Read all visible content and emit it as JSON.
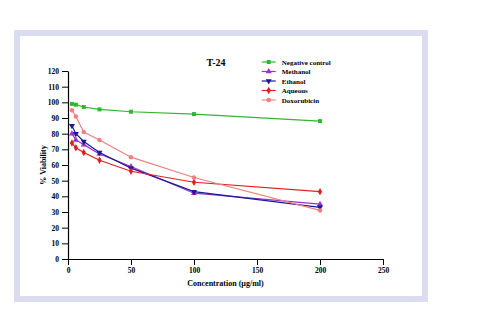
{
  "chart_data": {
    "type": "line",
    "title": "T-24",
    "x_label": "Concentration (µg/ml)",
    "y_label": "% Viability",
    "x": [
      3.125,
      6.25,
      12.5,
      25,
      50,
      100,
      200
    ],
    "xlim": [
      0,
      250
    ],
    "xticks": [
      0,
      50,
      100,
      150,
      200,
      250
    ],
    "ylim": [
      0,
      120
    ],
    "yticks": [
      0,
      10,
      20,
      30,
      40,
      50,
      60,
      70,
      80,
      90,
      100,
      110,
      120
    ],
    "grid": false,
    "legend": "top-right",
    "series": [
      {
        "name": "Negative control",
        "color": "#2db82d",
        "marker": "square",
        "values": [
          99,
          98.5,
          97,
          95.5,
          94,
          92.5,
          88
        ]
      },
      {
        "name": "Methanol",
        "color": "#9933cc",
        "marker": "triangle-up",
        "values": [
          80,
          76,
          73,
          67,
          59,
          42,
          35
        ]
      },
      {
        "name": "Ethanol",
        "color": "#1a1a99",
        "marker": "triangle-down",
        "values": [
          85,
          80,
          75,
          68,
          58,
          43,
          33
        ]
      },
      {
        "name": "Aqueous",
        "color": "#e02020",
        "marker": "diamond",
        "values": [
          74,
          71,
          68,
          63,
          56,
          49,
          43
        ]
      },
      {
        "name": "Doxorubicin",
        "color": "#f08080",
        "marker": "circle",
        "values": [
          95,
          91,
          81,
          76,
          65,
          52,
          31
        ]
      }
    ]
  }
}
